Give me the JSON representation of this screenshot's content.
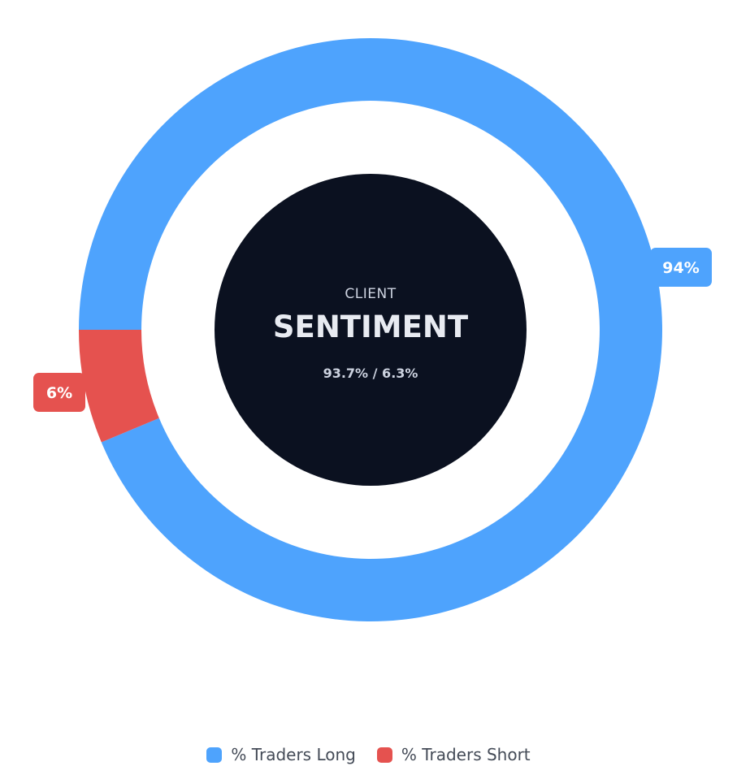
{
  "chart_data": {
    "type": "pie",
    "title": "CLIENT SENTIMENT",
    "center": {
      "caption": "CLIENT",
      "title": "SENTIMENT",
      "ratio": "93.7% / 6.3%"
    },
    "series": [
      {
        "name": "% Traders Long",
        "value": 93.7,
        "label": "94%",
        "color": "#4ea3fd"
      },
      {
        "name": "% Traders Short",
        "value": 6.3,
        "label": "6%",
        "color": "#e5524f"
      }
    ],
    "legend_position": "bottom-center"
  },
  "colors": {
    "center_fill": "#0b1120",
    "background": "#ffffff"
  }
}
